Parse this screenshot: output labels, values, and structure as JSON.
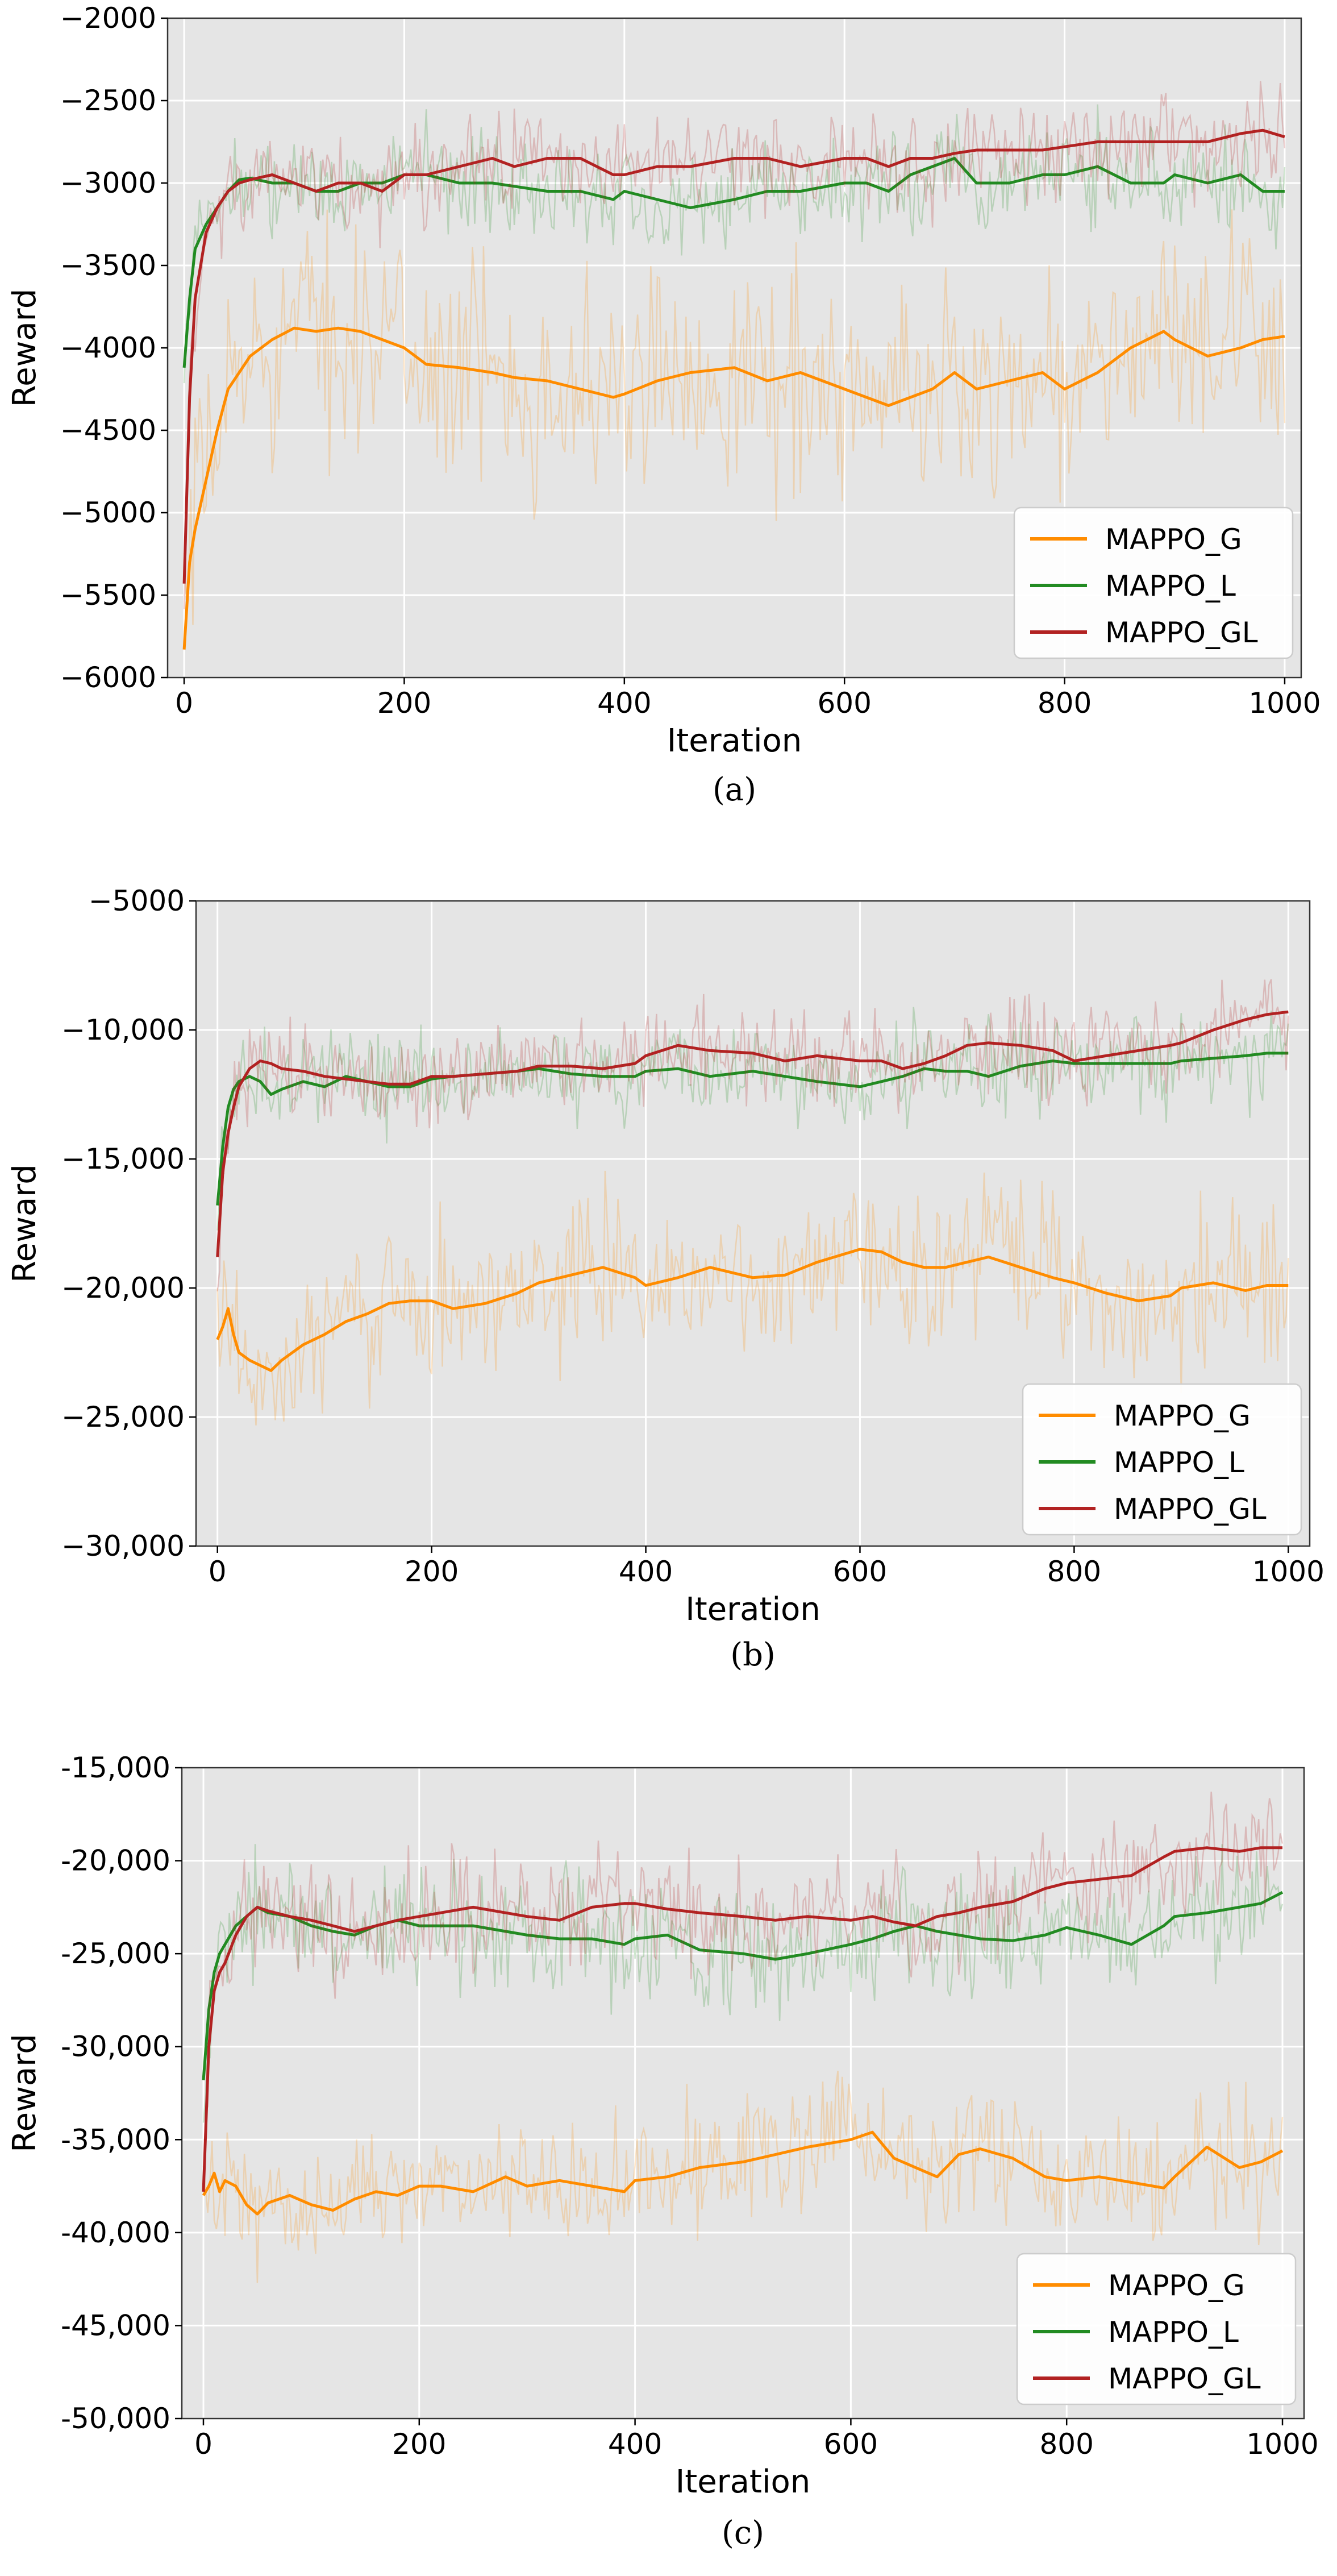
{
  "figure": {
    "colors": {
      "MAPPO_G": "#ff8c00",
      "MAPPO_L": "#228b22",
      "MAPPO_GL": "#b22222",
      "panel_bg": "#e5e5e5",
      "grid": "#ffffff"
    }
  },
  "chart_data": [
    {
      "id": "a",
      "type": "line",
      "caption": "(a)",
      "xlabel": "Iteration",
      "ylabel": "Reward",
      "xlim": [
        -15,
        1015
      ],
      "ylim": [
        -6000,
        -2000
      ],
      "xticks": [
        0,
        200,
        400,
        600,
        800,
        1000
      ],
      "xtick_labels": [
        "0",
        "200",
        "400",
        "600",
        "800",
        "1000"
      ],
      "yticks": [
        -6000,
        -5500,
        -5000,
        -4500,
        -4000,
        -3500,
        -3000,
        -2500,
        -2000
      ],
      "ytick_labels": [
        "−6000",
        "−5500",
        "−5000",
        "−4500",
        "−4000",
        "−3500",
        "−3000",
        "−2500",
        "−2000"
      ],
      "legend": "lower-right",
      "grid": true,
      "x": [
        0,
        5,
        10,
        20,
        30,
        40,
        50,
        60,
        80,
        100,
        120,
        140,
        160,
        180,
        200,
        220,
        250,
        280,
        300,
        330,
        360,
        390,
        400,
        430,
        460,
        500,
        530,
        560,
        600,
        620,
        640,
        660,
        680,
        700,
        720,
        750,
        780,
        800,
        830,
        860,
        890,
        900,
        930,
        960,
        980,
        1000
      ],
      "series": [
        {
          "name": "MAPPO_G",
          "raw_spread": 550,
          "values": [
            -5830,
            -5300,
            -5100,
            -4800,
            -4500,
            -4250,
            -4150,
            -4050,
            -3950,
            -3880,
            -3900,
            -3880,
            -3900,
            -3950,
            -4000,
            -4100,
            -4120,
            -4150,
            -4180,
            -4200,
            -4250,
            -4300,
            -4280,
            -4200,
            -4150,
            -4120,
            -4200,
            -4150,
            -4250,
            -4300,
            -4350,
            -4300,
            -4250,
            -4150,
            -4250,
            -4200,
            -4150,
            -4250,
            -4150,
            -4000,
            -3900,
            -3950,
            -4050,
            -4000,
            -3950,
            -3930
          ]
        },
        {
          "name": "MAPPO_L",
          "raw_spread": 250,
          "values": [
            -4120,
            -3700,
            -3400,
            -3250,
            -3150,
            -3050,
            -2980,
            -2970,
            -3000,
            -3000,
            -3050,
            -3050,
            -3000,
            -3000,
            -2950,
            -2950,
            -3000,
            -3000,
            -3020,
            -3050,
            -3050,
            -3100,
            -3050,
            -3100,
            -3150,
            -3100,
            -3050,
            -3050,
            -3000,
            -3000,
            -3050,
            -2950,
            -2900,
            -2850,
            -3000,
            -3000,
            -2950,
            -2950,
            -2900,
            -3000,
            -3000,
            -2950,
            -3000,
            -2950,
            -3050,
            -3050
          ]
        },
        {
          "name": "MAPPO_GL",
          "raw_spread": 250,
          "values": [
            -5430,
            -4300,
            -3700,
            -3300,
            -3150,
            -3050,
            -3000,
            -2980,
            -2950,
            -3000,
            -3050,
            -3000,
            -3000,
            -3050,
            -2950,
            -2950,
            -2900,
            -2850,
            -2900,
            -2850,
            -2850,
            -2950,
            -2950,
            -2900,
            -2900,
            -2850,
            -2850,
            -2900,
            -2850,
            -2850,
            -2900,
            -2850,
            -2850,
            -2820,
            -2800,
            -2800,
            -2800,
            -2780,
            -2750,
            -2750,
            -2750,
            -2750,
            -2750,
            -2700,
            -2680,
            -2720
          ]
        }
      ]
    },
    {
      "id": "b",
      "type": "line",
      "caption": "(b)",
      "xlabel": "Iteration",
      "ylabel": "Reward",
      "xlim": [
        -20,
        1020
      ],
      "ylim": [
        -30000,
        -5000
      ],
      "xticks": [
        0,
        200,
        400,
        600,
        800,
        1000
      ],
      "xtick_labels": [
        "0",
        "200",
        "400",
        "600",
        "800",
        "1000"
      ],
      "yticks": [
        -30000,
        -25000,
        -20000,
        -15000,
        -10000,
        -5000
      ],
      "ytick_labels": [
        "−30,000",
        "−25,000",
        "−20,000",
        "−15,000",
        "−10,000",
        "−5000"
      ],
      "legend": "lower-right",
      "grid": true,
      "x": [
        0,
        5,
        10,
        15,
        20,
        30,
        40,
        50,
        60,
        80,
        100,
        120,
        140,
        160,
        180,
        200,
        220,
        250,
        280,
        300,
        330,
        360,
        390,
        400,
        430,
        460,
        500,
        530,
        560,
        600,
        620,
        640,
        660,
        680,
        700,
        720,
        750,
        780,
        800,
        830,
        860,
        890,
        900,
        930,
        960,
        980,
        1000
      ],
      "series": [
        {
          "name": "MAPPO_G",
          "raw_spread": 2500,
          "values": [
            -22000,
            -21500,
            -20800,
            -21800,
            -22500,
            -22800,
            -23000,
            -23200,
            -22800,
            -22200,
            -21800,
            -21300,
            -21000,
            -20600,
            -20500,
            -20500,
            -20800,
            -20600,
            -20200,
            -19800,
            -19500,
            -19200,
            -19600,
            -19900,
            -19600,
            -19200,
            -19600,
            -19500,
            -19000,
            -18500,
            -18600,
            -19000,
            -19200,
            -19200,
            -19000,
            -18800,
            -19200,
            -19600,
            -19800,
            -20200,
            -20500,
            -20300,
            -20000,
            -19800,
            -20100,
            -19900,
            -19900
          ]
        },
        {
          "name": "MAPPO_L",
          "raw_spread": 1500,
          "values": [
            -16800,
            -14500,
            -13000,
            -12300,
            -12000,
            -11800,
            -12000,
            -12500,
            -12300,
            -12000,
            -12200,
            -11800,
            -12000,
            -12200,
            -12200,
            -11900,
            -11800,
            -11700,
            -11600,
            -11500,
            -11700,
            -11800,
            -11800,
            -11600,
            -11500,
            -11800,
            -11600,
            -11800,
            -12000,
            -12200,
            -12000,
            -11800,
            -11500,
            -11600,
            -11600,
            -11800,
            -11400,
            -11200,
            -11300,
            -11300,
            -11300,
            -11300,
            -11200,
            -11100,
            -11000,
            -10900,
            -10900
          ]
        },
        {
          "name": "MAPPO_GL",
          "raw_spread": 1500,
          "values": [
            -18800,
            -15500,
            -14000,
            -13000,
            -12200,
            -11500,
            -11200,
            -11300,
            -11500,
            -11600,
            -11800,
            -11900,
            -12000,
            -12100,
            -12100,
            -11800,
            -11800,
            -11700,
            -11600,
            -11400,
            -11400,
            -11500,
            -11300,
            -11000,
            -10600,
            -10800,
            -10900,
            -11200,
            -11000,
            -11200,
            -11200,
            -11500,
            -11300,
            -11000,
            -10600,
            -10500,
            -10600,
            -10800,
            -11200,
            -11000,
            -10800,
            -10600,
            -10500,
            -10000,
            -9600,
            -9400,
            -9300
          ]
        }
      ]
    },
    {
      "id": "c",
      "type": "line",
      "caption": "(c)",
      "xlabel": "Iteration",
      "ylabel": "Reward",
      "xlim": [
        -20,
        1020
      ],
      "ylim": [
        -50000,
        -15000
      ],
      "xticks": [
        0,
        200,
        400,
        600,
        800,
        1000
      ],
      "xtick_labels": [
        "0",
        "200",
        "400",
        "600",
        "800",
        "1000"
      ],
      "yticks": [
        -50000,
        -45000,
        -40000,
        -35000,
        -30000,
        -25000,
        -20000,
        -15000
      ],
      "ytick_labels": [
        "-50,000",
        "-45,000",
        "-40,000",
        "-35,000",
        "-30,000",
        "-25,000",
        "-20,000",
        "-15,000"
      ],
      "legend": "lower-right",
      "grid": true,
      "x": [
        0,
        5,
        10,
        15,
        20,
        30,
        40,
        50,
        60,
        80,
        100,
        120,
        140,
        160,
        180,
        200,
        220,
        250,
        280,
        300,
        330,
        360,
        390,
        400,
        430,
        460,
        500,
        530,
        560,
        600,
        620,
        640,
        660,
        680,
        700,
        720,
        750,
        780,
        800,
        830,
        860,
        890,
        900,
        930,
        960,
        980,
        1000
      ],
      "series": [
        {
          "name": "MAPPO_G",
          "raw_spread": 3000,
          "values": [
            -38000,
            -37500,
            -36800,
            -37800,
            -37200,
            -37500,
            -38500,
            -39000,
            -38400,
            -38000,
            -38500,
            -38800,
            -38200,
            -37800,
            -38000,
            -37500,
            -37500,
            -37800,
            -37000,
            -37500,
            -37200,
            -37500,
            -37800,
            -37200,
            -37000,
            -36500,
            -36200,
            -35800,
            -35400,
            -35000,
            -34600,
            -36000,
            -36500,
            -37000,
            -35800,
            -35500,
            -36000,
            -37000,
            -37200,
            -37000,
            -37300,
            -37600,
            -37000,
            -35400,
            -36500,
            -36200,
            -35600
          ]
        },
        {
          "name": "MAPPO_L",
          "raw_spread": 2500,
          "values": [
            -31800,
            -28000,
            -26000,
            -25000,
            -24500,
            -23500,
            -23000,
            -22500,
            -22800,
            -23000,
            -23500,
            -23800,
            -24000,
            -23500,
            -23200,
            -23500,
            -23500,
            -23500,
            -23800,
            -24000,
            -24200,
            -24200,
            -24500,
            -24200,
            -24000,
            -24800,
            -25000,
            -25300,
            -25000,
            -24500,
            -24200,
            -23800,
            -23500,
            -23800,
            -24000,
            -24200,
            -24300,
            -24000,
            -23600,
            -24000,
            -24500,
            -23500,
            -23000,
            -22800,
            -22500,
            -22300,
            -21700
          ]
        },
        {
          "name": "MAPPO_GL",
          "raw_spread": 2500,
          "values": [
            -37800,
            -30000,
            -27000,
            -26000,
            -25500,
            -24000,
            -23000,
            -22500,
            -22700,
            -23000,
            -23200,
            -23500,
            -23800,
            -23500,
            -23200,
            -23000,
            -22800,
            -22500,
            -22800,
            -23000,
            -23200,
            -22500,
            -22300,
            -22300,
            -22600,
            -22800,
            -23000,
            -23200,
            -23000,
            -23200,
            -23000,
            -23300,
            -23500,
            -23000,
            -22800,
            -22500,
            -22200,
            -21500,
            -21200,
            -21000,
            -20800,
            -19800,
            -19500,
            -19300,
            -19500,
            -19300,
            -19300
          ]
        }
      ]
    }
  ]
}
